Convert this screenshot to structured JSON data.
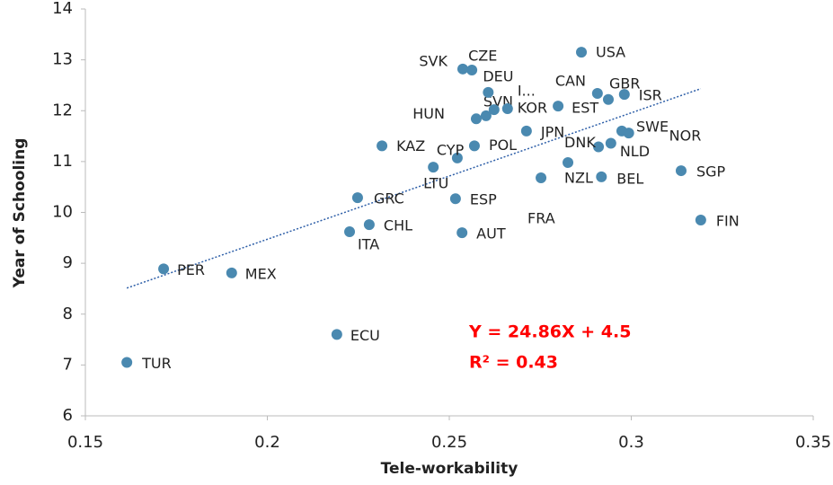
{
  "chart_data": {
    "type": "scatter",
    "x_label": "Tele-workability",
    "y_label": "Year of Schooling",
    "categories": [
      "TUR",
      "PER",
      "MEX",
      "ECU",
      "ITA",
      "CHL",
      "GRC",
      "KAZ",
      "LTU",
      "CYP",
      "ESP",
      "AUT",
      "POL",
      "HUN",
      "SVN",
      "KOR",
      "DEU",
      "I...",
      "SVK",
      "CZE",
      "USA",
      "CAN",
      "GBR",
      "ISR",
      "EST",
      "JPN",
      "FRA",
      "NZL",
      "DNK",
      "NLD",
      "SWE",
      "NOR",
      "BEL",
      "SGP",
      "FIN"
    ],
    "x": [
      0.1614,
      0.1715,
      0.1902,
      0.2191,
      0.2226,
      0.228,
      0.2248,
      0.2315,
      0.2456,
      0.2522,
      0.2517,
      0.2535,
      0.2569,
      0.2574,
      0.2601,
      0.266,
      0.2607,
      0.2623,
      0.2537,
      0.2562,
      0.2863,
      0.2907,
      0.2937,
      0.2981,
      0.2799,
      0.2712,
      0.2752,
      0.2826,
      0.291,
      0.2944,
      0.2974,
      0.2993,
      0.2918,
      0.3137,
      0.3191
    ],
    "values": [
      7.05,
      8.89,
      8.81,
      7.6,
      9.62,
      9.76,
      10.29,
      11.31,
      10.89,
      11.07,
      10.27,
      9.6,
      11.31,
      11.84,
      11.9,
      12.04,
      12.36,
      12.02,
      12.82,
      12.8,
      13.15,
      12.34,
      12.22,
      12.32,
      12.09,
      11.6,
      10.68,
      10.98,
      11.29,
      11.36,
      11.6,
      11.56,
      10.7,
      10.82,
      9.85
    ],
    "color": "#4a89b0",
    "trendline": {
      "label": "Y = 24.86X + 4.5",
      "r2_label": "R² = 0.43",
      "slope": 24.86,
      "intercept": 4.5,
      "r2": 0.43,
      "color": "#2e5fa8"
    },
    "annotation_color": "#ff0000",
    "xlim": [
      0.15,
      0.35
    ],
    "xticks": [
      0.15,
      0.2,
      0.25,
      0.3,
      0.35
    ],
    "ylim": [
      6,
      14
    ],
    "yticks": [
      6,
      7,
      8,
      9,
      10,
      11,
      12,
      13,
      14
    ]
  }
}
